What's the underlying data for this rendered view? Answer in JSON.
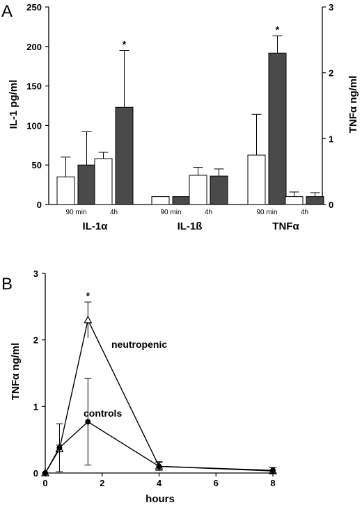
{
  "chart_data": [
    {
      "type": "bar",
      "panel_label": "A",
      "ylabel": "IL-1 pg/ml",
      "ylim": [
        0,
        250
      ],
      "yticks": [
        "0",
        "50",
        "100",
        "150",
        "200",
        "250"
      ],
      "y2label": "TNFα ng/ml",
      "y2lim": [
        0,
        3
      ],
      "y2ticks": [
        "0",
        "1",
        "2",
        "3"
      ],
      "groups": [
        {
          "name": "IL-1α",
          "axis": "left",
          "times": [
            "90 min",
            "4h"
          ],
          "pairs": [
            {
              "open": 35,
              "open_err": 25,
              "filled": 50,
              "filled_err": 42
            },
            {
              "open": 58,
              "open_err": 8,
              "filled": 123,
              "filled_err": 72,
              "filled_star": "*"
            }
          ]
        },
        {
          "name": "IL-1ß",
          "axis": "left",
          "times": [
            "90 min",
            "4h"
          ],
          "pairs": [
            {
              "open": 10,
              "open_err": 0,
              "filled": 10,
              "filled_err": 0
            },
            {
              "open": 37,
              "open_err": 10,
              "filled": 36,
              "filled_err": 9
            }
          ]
        },
        {
          "name": "TNFα",
          "axis": "right",
          "times": [
            "90 min",
            "4h"
          ],
          "pairs": [
            {
              "open": 0.75,
              "open_err": 0.62,
              "filled": 2.3,
              "filled_err": 0.26,
              "filled_star": "*"
            },
            {
              "open": 0.12,
              "open_err": 0.07,
              "filled": 0.12,
              "filled_err": 0.06
            }
          ]
        }
      ]
    },
    {
      "type": "line",
      "panel_label": "B",
      "xlabel": "hours",
      "ylabel": "TNFα ng/ml",
      "xlim": [
        0,
        8
      ],
      "ylim": [
        0,
        3
      ],
      "xticks": [
        "0",
        "2",
        "4",
        "6",
        "8"
      ],
      "yticks": [
        "0",
        "1",
        "2",
        "3"
      ],
      "x": [
        0,
        0.5,
        1.5,
        4,
        8
      ],
      "series": [
        {
          "name": "neutropenic",
          "marker": "open-triangle",
          "values": [
            0,
            0.36,
            2.3,
            0.1,
            0.03
          ],
          "errors": [
            0,
            0.06,
            0.27,
            0.07,
            0.05
          ],
          "stars": [
            null,
            null,
            "*",
            null,
            null
          ]
        },
        {
          "name": "controls",
          "marker": "filled-circle",
          "values": [
            0,
            0.38,
            0.77,
            0.1,
            0.04
          ],
          "errors": [
            0,
            0.36,
            0.65,
            0.06,
            0.04
          ]
        }
      ]
    }
  ]
}
